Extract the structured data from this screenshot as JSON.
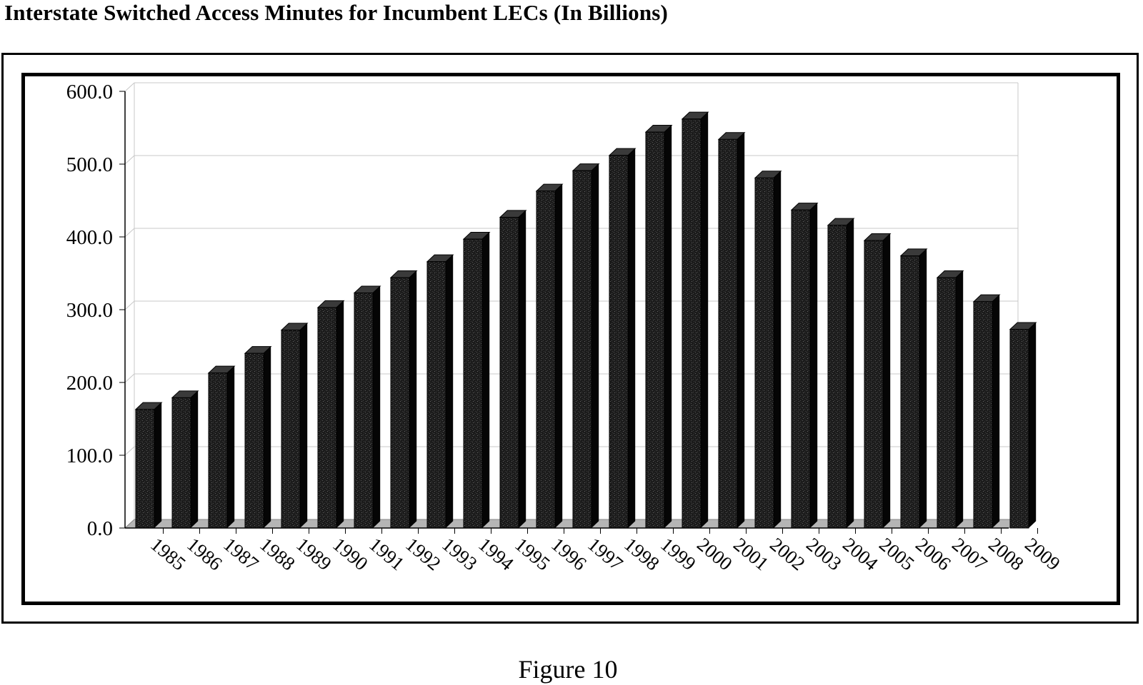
{
  "title": "Interstate Switched Access Minutes for Incumbent LECs (In Billions)",
  "caption": "Figure 10",
  "chart_data": {
    "type": "bar",
    "title": "Interstate Switched Access Minutes for Incumbent LECs (In Billions)",
    "xlabel": "",
    "ylabel": "",
    "categories": [
      "1985",
      "1986",
      "1987",
      "1988",
      "1989",
      "1990",
      "1991",
      "1992",
      "1993",
      "1994",
      "1995",
      "1996",
      "1997",
      "1998",
      "1999",
      "2000",
      "2001",
      "2002",
      "2003",
      "2004",
      "2005",
      "2006",
      "2007",
      "2008",
      "2009"
    ],
    "values": [
      163,
      179,
      213,
      240,
      272,
      303,
      323,
      344,
      366,
      397,
      427,
      463,
      491,
      512,
      544,
      562,
      534,
      481,
      437,
      416,
      395,
      374,
      344,
      311,
      273
    ],
    "ylim": [
      0,
      600
    ],
    "yticks": [
      "0.0",
      "100.0",
      "200.0",
      "300.0",
      "400.0",
      "500.0",
      "600.0"
    ],
    "grid": true,
    "legend": "none",
    "colors": {
      "bar_front": "#1c1c1c",
      "bar_side": "#050505",
      "bar_top": "#3a3a3a",
      "floor": "#b5b5b5",
      "grid": "#c8c8c8"
    }
  }
}
